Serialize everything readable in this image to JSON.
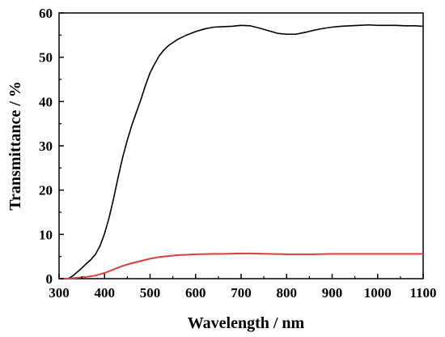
{
  "chart_data": {
    "type": "line",
    "title": "",
    "xlabel": "Wavelength / nm",
    "ylabel": "Transmittance / %",
    "xlim": [
      300,
      1100
    ],
    "ylim": [
      0,
      60
    ],
    "x_ticks": [
      300,
      400,
      500,
      600,
      700,
      800,
      900,
      1000,
      1100
    ],
    "y_ticks": [
      0,
      10,
      20,
      30,
      40,
      50,
      60
    ],
    "grid": false,
    "legend": "none",
    "series": [
      {
        "color": "#000000",
        "x": [
          300,
          320,
          330,
          340,
          350,
          360,
          370,
          380,
          390,
          400,
          410,
          420,
          430,
          440,
          450,
          460,
          470,
          480,
          490,
          500,
          510,
          520,
          530,
          540,
          550,
          560,
          580,
          600,
          620,
          640,
          660,
          680,
          700,
          720,
          740,
          760,
          780,
          800,
          820,
          840,
          860,
          880,
          900,
          920,
          940,
          960,
          980,
          1000,
          1020,
          1040,
          1060,
          1080,
          1100
        ],
        "y": [
          0,
          0,
          0.6,
          1.5,
          2.4,
          3.4,
          4.3,
          5.5,
          7.4,
          10.2,
          13.8,
          18.2,
          23.0,
          27.5,
          31.3,
          34.7,
          37.6,
          40.5,
          43.7,
          46.5,
          48.5,
          50.3,
          51.6,
          52.6,
          53.3,
          54.0,
          55.0,
          55.8,
          56.4,
          56.8,
          56.9,
          57.0,
          57.2,
          57.1,
          56.6,
          56.0,
          55.4,
          55.2,
          55.2,
          55.6,
          56.1,
          56.5,
          56.8,
          57.0,
          57.1,
          57.2,
          57.3,
          57.2,
          57.2,
          57.2,
          57.1,
          57.1,
          57.0
        ]
      },
      {
        "color": "#d94040",
        "x": [
          300,
          320,
          340,
          360,
          380,
          400,
          420,
          440,
          460,
          480,
          500,
          520,
          540,
          560,
          580,
          600,
          620,
          640,
          660,
          680,
          700,
          720,
          740,
          760,
          780,
          800,
          820,
          840,
          860,
          880,
          900,
          920,
          940,
          960,
          980,
          1000,
          1020,
          1040,
          1060,
          1080,
          1100
        ],
        "y": [
          0,
          0,
          0.2,
          0.4,
          0.7,
          1.3,
          2.1,
          2.9,
          3.5,
          4.0,
          4.5,
          4.9,
          5.1,
          5.3,
          5.4,
          5.5,
          5.55,
          5.6,
          5.6,
          5.65,
          5.7,
          5.7,
          5.65,
          5.6,
          5.55,
          5.5,
          5.5,
          5.5,
          5.5,
          5.55,
          5.6,
          5.6,
          5.6,
          5.6,
          5.6,
          5.6,
          5.6,
          5.6,
          5.6,
          5.6,
          5.6
        ]
      }
    ]
  }
}
